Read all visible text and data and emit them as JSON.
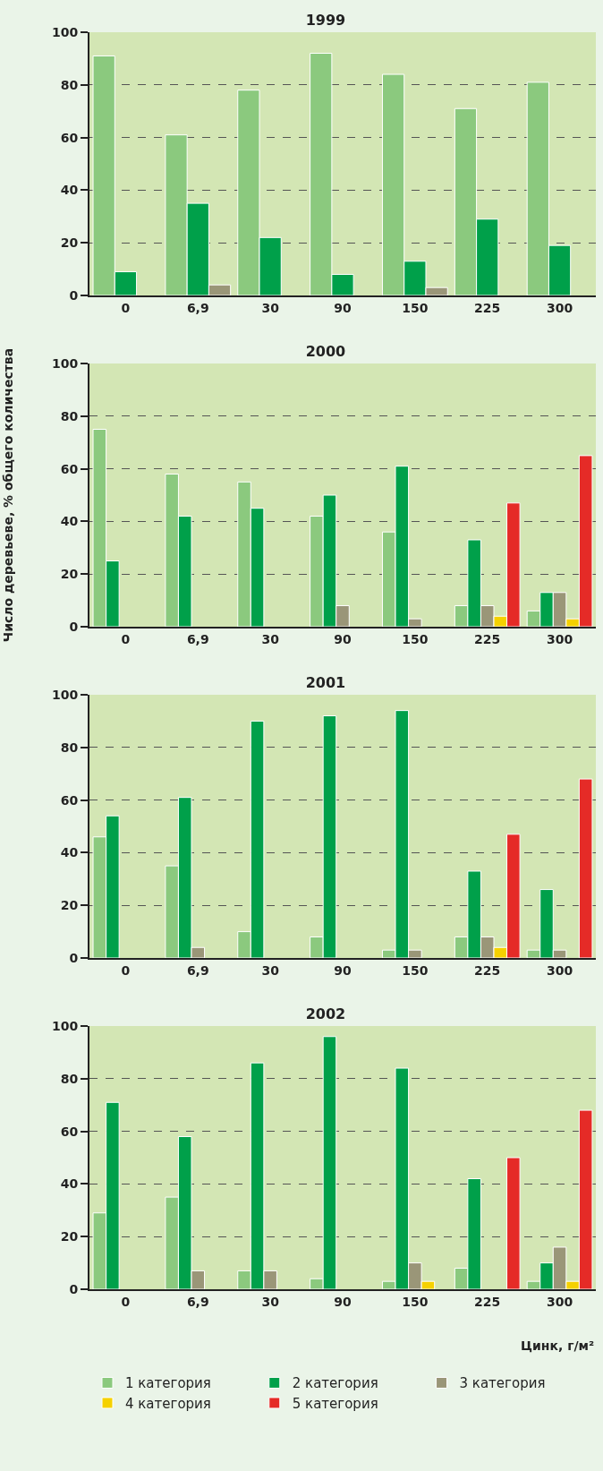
{
  "chart_data": [
    {
      "type": "bar",
      "title": "1999",
      "categories": [
        "0",
        "6,9",
        "30",
        "90",
        "150",
        "225",
        "300"
      ],
      "series": [
        {
          "color": "#8bc97e",
          "values": [
            91,
            61,
            78,
            92,
            84,
            71,
            81
          ]
        },
        {
          "color": "#00a04a",
          "values": [
            9,
            35,
            22,
            8,
            13,
            29,
            19
          ]
        },
        {
          "color": "#9a9678",
          "values": [
            null,
            4,
            null,
            null,
            3,
            null,
            null
          ]
        }
      ],
      "ylim": [
        0,
        100
      ],
      "yticks": [
        0,
        20,
        40,
        60,
        80,
        100
      ],
      "grid": "y"
    },
    {
      "type": "bar",
      "title": "2000",
      "ylabel": "Число деревьеве, % общего количества",
      "categories": [
        "0",
        "6,9",
        "30",
        "90",
        "150",
        "225",
        "300"
      ],
      "series": [
        {
          "color": "#8bc97e",
          "values": [
            75,
            58,
            55,
            42,
            36,
            8,
            6
          ]
        },
        {
          "color": "#00a04a",
          "values": [
            25,
            42,
            45,
            50,
            61,
            33,
            13
          ]
        },
        {
          "color": "#9a9678",
          "values": [
            null,
            null,
            null,
            8,
            3,
            8,
            13
          ]
        },
        {
          "color": "#f5d100",
          "values": [
            null,
            null,
            null,
            null,
            null,
            4,
            3
          ]
        },
        {
          "color": "#e52b27",
          "values": [
            null,
            null,
            null,
            null,
            null,
            47,
            65
          ]
        }
      ],
      "ylim": [
        0,
        100
      ],
      "yticks": [
        0,
        20,
        40,
        60,
        80,
        100
      ],
      "grid": "y"
    },
    {
      "type": "bar",
      "title": "2001",
      "categories": [
        "0",
        "6,9",
        "30",
        "90",
        "150",
        "225",
        "300"
      ],
      "series": [
        {
          "color": "#8bc97e",
          "values": [
            46,
            35,
            10,
            8,
            3,
            8,
            3
          ]
        },
        {
          "color": "#00a04a",
          "values": [
            54,
            61,
            90,
            92,
            94,
            33,
            26
          ]
        },
        {
          "color": "#9a9678",
          "values": [
            null,
            4,
            null,
            null,
            3,
            8,
            3
          ]
        },
        {
          "color": "#f5d100",
          "values": [
            null,
            null,
            null,
            null,
            null,
            4,
            null
          ]
        },
        {
          "color": "#e52b27",
          "values": [
            null,
            null,
            null,
            null,
            null,
            47,
            68
          ]
        }
      ],
      "ylim": [
        0,
        100
      ],
      "yticks": [
        0,
        20,
        40,
        60,
        80,
        100
      ],
      "grid": "y"
    },
    {
      "type": "bar",
      "title": "2002",
      "xlabel": "Цинк, г/м²",
      "categories": [
        "0",
        "6,9",
        "30",
        "90",
        "150",
        "225",
        "300"
      ],
      "series": [
        {
          "name": "1 категория",
          "color": "#8bc97e",
          "values": [
            29,
            35,
            7,
            4,
            3,
            8,
            3
          ]
        },
        {
          "name": "2 категория",
          "color": "#00a04a",
          "values": [
            71,
            58,
            86,
            96,
            84,
            42,
            10
          ]
        },
        {
          "name": "3 категория",
          "color": "#9a9678",
          "values": [
            null,
            7,
            7,
            null,
            10,
            null,
            16
          ]
        },
        {
          "name": "4 категория",
          "color": "#f5d100",
          "values": [
            null,
            null,
            null,
            null,
            3,
            null,
            3
          ]
        },
        {
          "name": "5 категория",
          "color": "#e52b27",
          "values": [
            null,
            null,
            null,
            null,
            null,
            50,
            68
          ]
        }
      ],
      "ylim": [
        0,
        100
      ],
      "yticks": [
        0,
        20,
        40,
        60,
        80,
        100
      ],
      "grid": "y",
      "legend": "bottom"
    }
  ]
}
